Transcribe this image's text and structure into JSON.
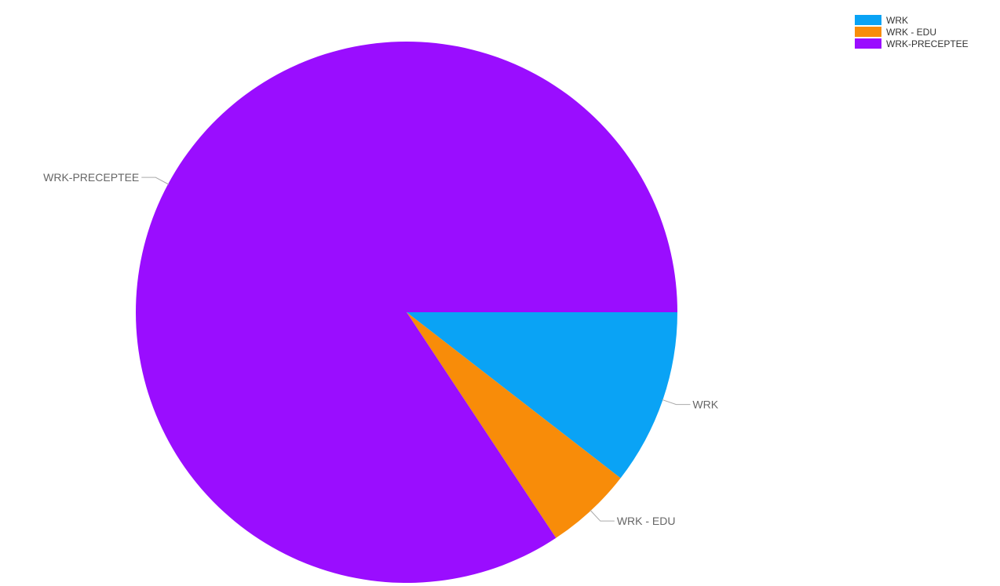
{
  "chart_data": {
    "type": "pie",
    "title": "",
    "legend_placement": "top-right",
    "slices": [
      {
        "name": "WRK",
        "value": 10.5,
        "color": "#0aa3f5"
      },
      {
        "name": "WRK - EDU",
        "value": 5.2,
        "color": "#f88c09"
      },
      {
        "name": "WRK-PRECEPTEE",
        "value": 84.3,
        "color": "#9a0dff"
      }
    ]
  }
}
